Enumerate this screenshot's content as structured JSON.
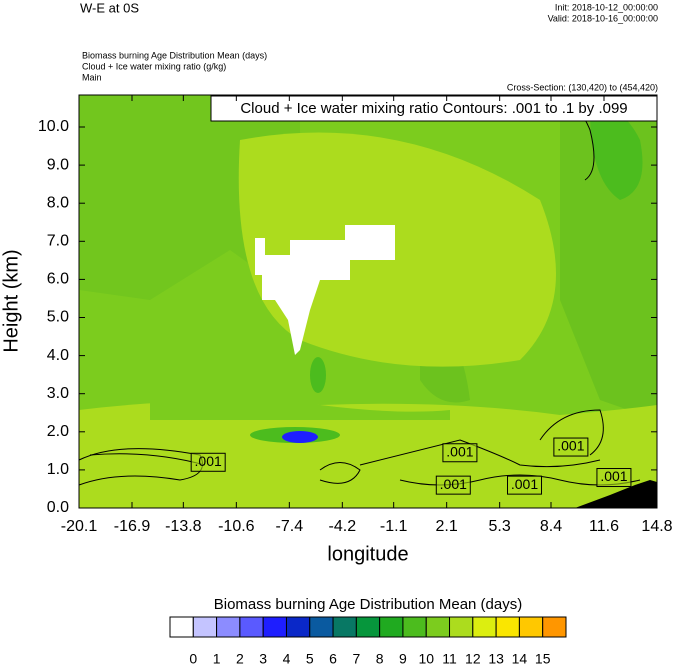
{
  "chart_data": {
    "type": "contour",
    "title": "W-E at 0S",
    "init": "Init: 2018-10-12_00:00:00",
    "valid": "Valid: 2018-10-16_00:00:00",
    "subtitles": [
      "Biomass burning Age Distribution Mean   (days)",
      "Cloud + Ice water mixing ratio   (g/kg)",
      "Main"
    ],
    "cross_section": "Cross-Section: (130,420) to (454,420)",
    "contour_info": "Cloud + Ice water mixing ratio Contours: .001 to .1 by .099",
    "xlabel": "longitude",
    "ylabel": "Height (km)",
    "xlim": [
      -20.1,
      14.8
    ],
    "xticks": [
      -20.1,
      -16.9,
      -13.8,
      -10.6,
      -7.4,
      -4.2,
      -1.1,
      2.1,
      5.3,
      8.4,
      11.6,
      14.8
    ],
    "ylim": [
      0,
      10.84
    ],
    "yticks": [
      {
        "value": 0,
        "label": "0.0"
      },
      {
        "value": 1,
        "label": "1.0"
      },
      {
        "value": 2,
        "label": "2.0"
      },
      {
        "value": 3,
        "label": "3.0"
      },
      {
        "value": 4,
        "label": "4.0"
      },
      {
        "value": 5,
        "label": "5.0"
      },
      {
        "value": 6,
        "label": "6.0"
      },
      {
        "value": 7,
        "label": "7.0"
      },
      {
        "value": 8,
        "label": "8.0"
      },
      {
        "value": 9,
        "label": "9.0"
      },
      {
        "value": 10,
        "label": "10.0"
      }
    ],
    "contour_labels": [
      {
        "x": -12.3,
        "y": 1.2,
        "value": 0.001,
        "label": ".001"
      },
      {
        "x": 2.9,
        "y": 1.45,
        "value": 0.001,
        "label": ".001"
      },
      {
        "x": 9.6,
        "y": 1.6,
        "value": 0.001,
        "label": ".001"
      },
      {
        "x": 2.5,
        "y": 0.6,
        "value": 0.001,
        "label": ".001"
      },
      {
        "x": 6.8,
        "y": 0.6,
        "value": 0.001,
        "label": ".001"
      },
      {
        "x": 12.2,
        "y": 0.8,
        "value": 0.001,
        "label": ".001"
      }
    ],
    "colorbar": {
      "title": "Biomass burning Age Distribution Mean  (days)",
      "levels": [
        0,
        1,
        2,
        3,
        4,
        5,
        6,
        7,
        8,
        9,
        10,
        11,
        12,
        13,
        14,
        15
      ],
      "colors": [
        "#ffffff",
        "#c4c4ff",
        "#8c8cff",
        "#5a5aff",
        "#1e1eff",
        "#0a28c8",
        "#0a5aa0",
        "#087864",
        "#06963c",
        "#20aa20",
        "#4cbc1e",
        "#7ccc1e",
        "#acdc1e",
        "#dcee10",
        "#fae600",
        "#ffc800",
        "#ff9600"
      ]
    }
  }
}
